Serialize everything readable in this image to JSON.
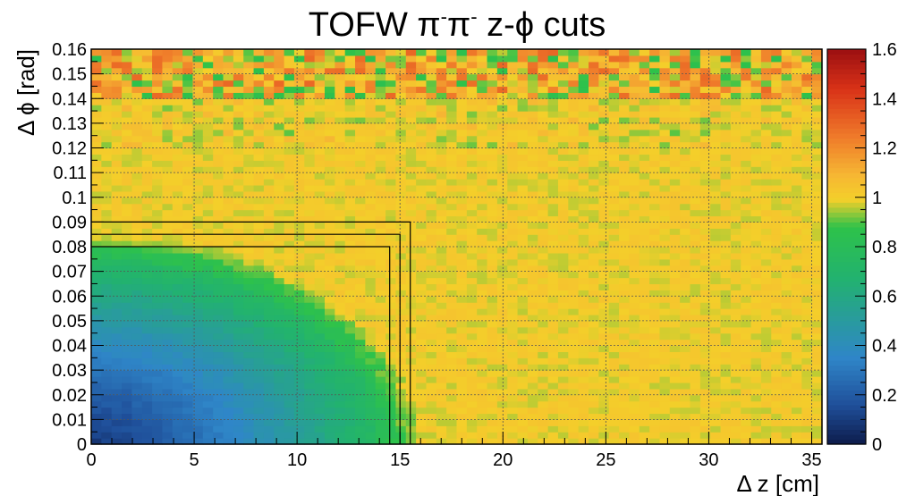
{
  "chart_data": {
    "type": "heatmap",
    "title": {
      "prefix": "TOFW ",
      "pi": "π",
      "minus": "-",
      "suffix_phi_pre": "  z-",
      "phi": "ϕ",
      "suffix": " cuts"
    },
    "xlabel": "Δ z [cm]",
    "ylabel": "Δ ϕ [rad]",
    "xlim": [
      0,
      35.5
    ],
    "ylim": [
      0,
      0.16
    ],
    "x_ticks": [
      0,
      5,
      10,
      15,
      20,
      25,
      30,
      35
    ],
    "x_tick_labels": [
      "0",
      "5",
      "10",
      "15",
      "20",
      "25",
      "30",
      "35"
    ],
    "y_ticks": [
      0,
      0.01,
      0.02,
      0.03,
      0.04,
      0.05,
      0.06,
      0.07,
      0.08,
      0.09,
      0.1,
      0.11,
      0.12,
      0.13,
      0.14,
      0.15,
      0.16
    ],
    "y_tick_labels": [
      "0",
      "0.01",
      "0.02",
      "0.03",
      "0.04",
      "0.05",
      "0.06",
      "0.07",
      "0.08",
      "0.09",
      "0.1",
      "0.11",
      "0.12",
      "0.13",
      "0.14",
      "0.15",
      "0.16"
    ],
    "grid": true,
    "zlim": [
      0,
      1.6
    ],
    "z_ticks": [
      0,
      0.2,
      0.4,
      0.6,
      0.8,
      1,
      1.2,
      1.4,
      1.6
    ],
    "z_tick_labels": [
      "0",
      "0.2",
      "0.4",
      "0.6",
      "0.8",
      "1",
      "1.2",
      "1.4",
      "1.6"
    ],
    "bins": {
      "x_count": 72,
      "y_count": 64
    },
    "plateau_value": 1.0,
    "suppression_region": {
      "description_values": "ratio rises from about 0.1 near (0,0) to 1.0 outside the region",
      "x_extent": 14,
      "y_extent": 0.075,
      "min_value": 0.1
    },
    "noisy_band": {
      "y_from": 0.14,
      "y_to": 0.16,
      "value_range": [
        0.85,
        1.3
      ]
    },
    "cut_boxes": [
      {
        "dz_max": 14.5,
        "dphi_max": 0.08
      },
      {
        "dz_max": 15.0,
        "dphi_max": 0.085
      },
      {
        "dz_max": 15.5,
        "dphi_max": 0.09
      }
    ],
    "colors": {
      "palette": [
        "#0d1b4a",
        "#1f4f9a",
        "#2f86c8",
        "#22b26f",
        "#2ec24a",
        "#f4cf2a",
        "#f6b833",
        "#ef7a2a",
        "#d93218",
        "#9b0f10"
      ],
      "plateau": "#f3b935",
      "cut_line": "#000000",
      "grid": "#555555"
    }
  }
}
